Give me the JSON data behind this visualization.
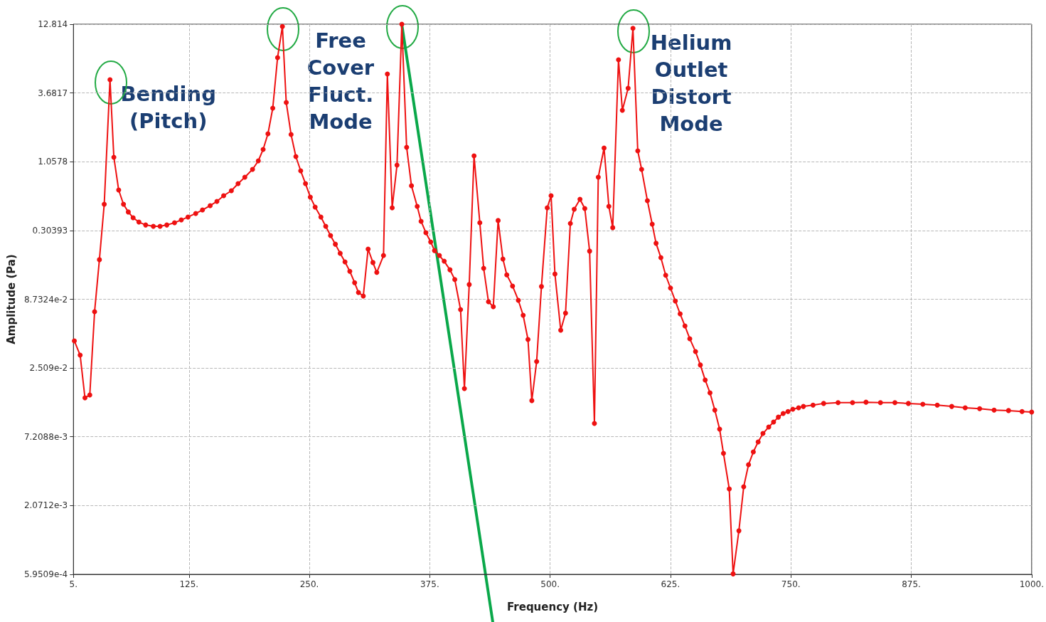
{
  "chart_data": {
    "type": "line",
    "xlabel": "Frequency (Hz)",
    "ylabel": "Amplitude (Pa)",
    "log": "y",
    "grid": true,
    "marker": "circle",
    "line_style": "solid",
    "xlim": [
      5,
      1000
    ],
    "xticks": [
      {
        "value": 5,
        "label": "5."
      },
      {
        "value": 125,
        "label": "125."
      },
      {
        "value": 250,
        "label": "250."
      },
      {
        "value": 375,
        "label": "375."
      },
      {
        "value": 500,
        "label": "500."
      },
      {
        "value": 625,
        "label": "625."
      },
      {
        "value": 750,
        "label": "750."
      },
      {
        "value": 875,
        "label": "875."
      },
      {
        "value": 1000,
        "label": "1000."
      }
    ],
    "ylim": [
      0.00059509,
      12.814
    ],
    "yticks": [
      {
        "value": 0.00059509,
        "label": "5.9509e-4"
      },
      {
        "value": 0.0020712,
        "label": "2.0712e-3"
      },
      {
        "value": 0.0072088,
        "label": "7.2088e-3"
      },
      {
        "value": 0.02509,
        "label": "2.509e-2"
      },
      {
        "value": 0.087324,
        "label": "8.7324e-2"
      },
      0.30393,
      1.0578,
      3.6817,
      12.814
    ],
    "series": [
      {
        "color": "#ee1111",
        "x": [
          6,
          12,
          17,
          22,
          27,
          32,
          37,
          43,
          47,
          52,
          57,
          62,
          67,
          73,
          80,
          88,
          95,
          102,
          110,
          117,
          124,
          132,
          139,
          147,
          154,
          161,
          169,
          176,
          183,
          191,
          197,
          202,
          207,
          212,
          217,
          222,
          226,
          231,
          236,
          241,
          246,
          251,
          256,
          262,
          267,
          272,
          277,
          282,
          287,
          292,
          297,
          301,
          306,
          311,
          316,
          320,
          327,
          331,
          336,
          341,
          346,
          351,
          356,
          362,
          366,
          371,
          376,
          380,
          385,
          390,
          396,
          401,
          407,
          411,
          416,
          421,
          427,
          431,
          436,
          441,
          446,
          451,
          455,
          461,
          467,
          472,
          477,
          481,
          486,
          491,
          497,
          501,
          505,
          511,
          516,
          521,
          525,
          531,
          536,
          541,
          546,
          550,
          556,
          561,
          565,
          571,
          575,
          581,
          586,
          591,
          595,
          601,
          606,
          610,
          615,
          620,
          625,
          630,
          635,
          640,
          645,
          651,
          656,
          661,
          666,
          671,
          676,
          680,
          686,
          690,
          696,
          701,
          706,
          711,
          716,
          721,
          727,
          732,
          737,
          742,
          747,
          752,
          758,
          763,
          773,
          784,
          799,
          814,
          828,
          843,
          858,
          872,
          887,
          902,
          917,
          931,
          946,
          961,
          976,
          990,
          1000
        ],
        "values": [
          0.041,
          0.0317,
          0.0146,
          0.0154,
          0.0697,
          0.179,
          0.489,
          4.68,
          1.147,
          0.633,
          0.489,
          0.425,
          0.383,
          0.354,
          0.336,
          0.328,
          0.328,
          0.336,
          0.35,
          0.368,
          0.388,
          0.414,
          0.441,
          0.477,
          0.515,
          0.571,
          0.625,
          0.711,
          0.799,
          0.921,
          1.075,
          1.322,
          1.756,
          2.795,
          6.99,
          12.3,
          3.1,
          1.734,
          1.162,
          0.897,
          0.711,
          0.557,
          0.465,
          0.388,
          0.328,
          0.277,
          0.237,
          0.201,
          0.172,
          0.145,
          0.118,
          0.0987,
          0.0926,
          0.217,
          0.17,
          0.142,
          0.193,
          5.19,
          0.459,
          0.995,
          12.8,
          1.374,
          0.684,
          0.471,
          0.359,
          0.292,
          0.247,
          0.211,
          0.193,
          0.174,
          0.149,
          0.125,
          0.0724,
          0.0173,
          0.114,
          1.177,
          0.35,
          0.153,
          0.0834,
          0.0762,
          0.364,
          0.181,
          0.136,
          0.111,
          0.0857,
          0.0653,
          0.0421,
          0.0139,
          0.0282,
          0.11,
          0.459,
          0.571,
          0.138,
          0.0498,
          0.0679,
          0.345,
          0.447,
          0.536,
          0.453,
          0.209,
          0.00918,
          0.799,
          1.356,
          0.471,
          0.32,
          6.72,
          2.69,
          4.01,
          11.9,
          1.288,
          0.921,
          0.522,
          0.341,
          0.241,
          0.186,
          0.135,
          0.107,
          0.0846,
          0.067,
          0.0538,
          0.0427,
          0.0338,
          0.0265,
          0.0202,
          0.016,
          0.0117,
          0.00828,
          0.00534,
          0.0028,
          0.0006,
          0.00131,
          0.00291,
          0.00434,
          0.00548,
          0.00657,
          0.00766,
          0.00861,
          0.00942,
          0.0103,
          0.011,
          0.0114,
          0.0119,
          0.0122,
          0.0125,
          0.0128,
          0.0132,
          0.0134,
          0.0134,
          0.0135,
          0.0134,
          0.0134,
          0.0132,
          0.013,
          0.0128,
          0.0125,
          0.0122,
          0.012,
          0.0117,
          0.0116,
          0.0114,
          0.0113
        ]
      }
    ],
    "annotations": [
      {
        "text": "Bending\n(Pitch)",
        "x": 43,
        "y": 4.68
      },
      {
        "text": "Free\nCover\nFluct.\nMode",
        "x": 222,
        "y": 12.3
      },
      {
        "text": "Helium\nOutlet\nDistort\nMode",
        "x": 586,
        "y": 11.9
      }
    ]
  }
}
